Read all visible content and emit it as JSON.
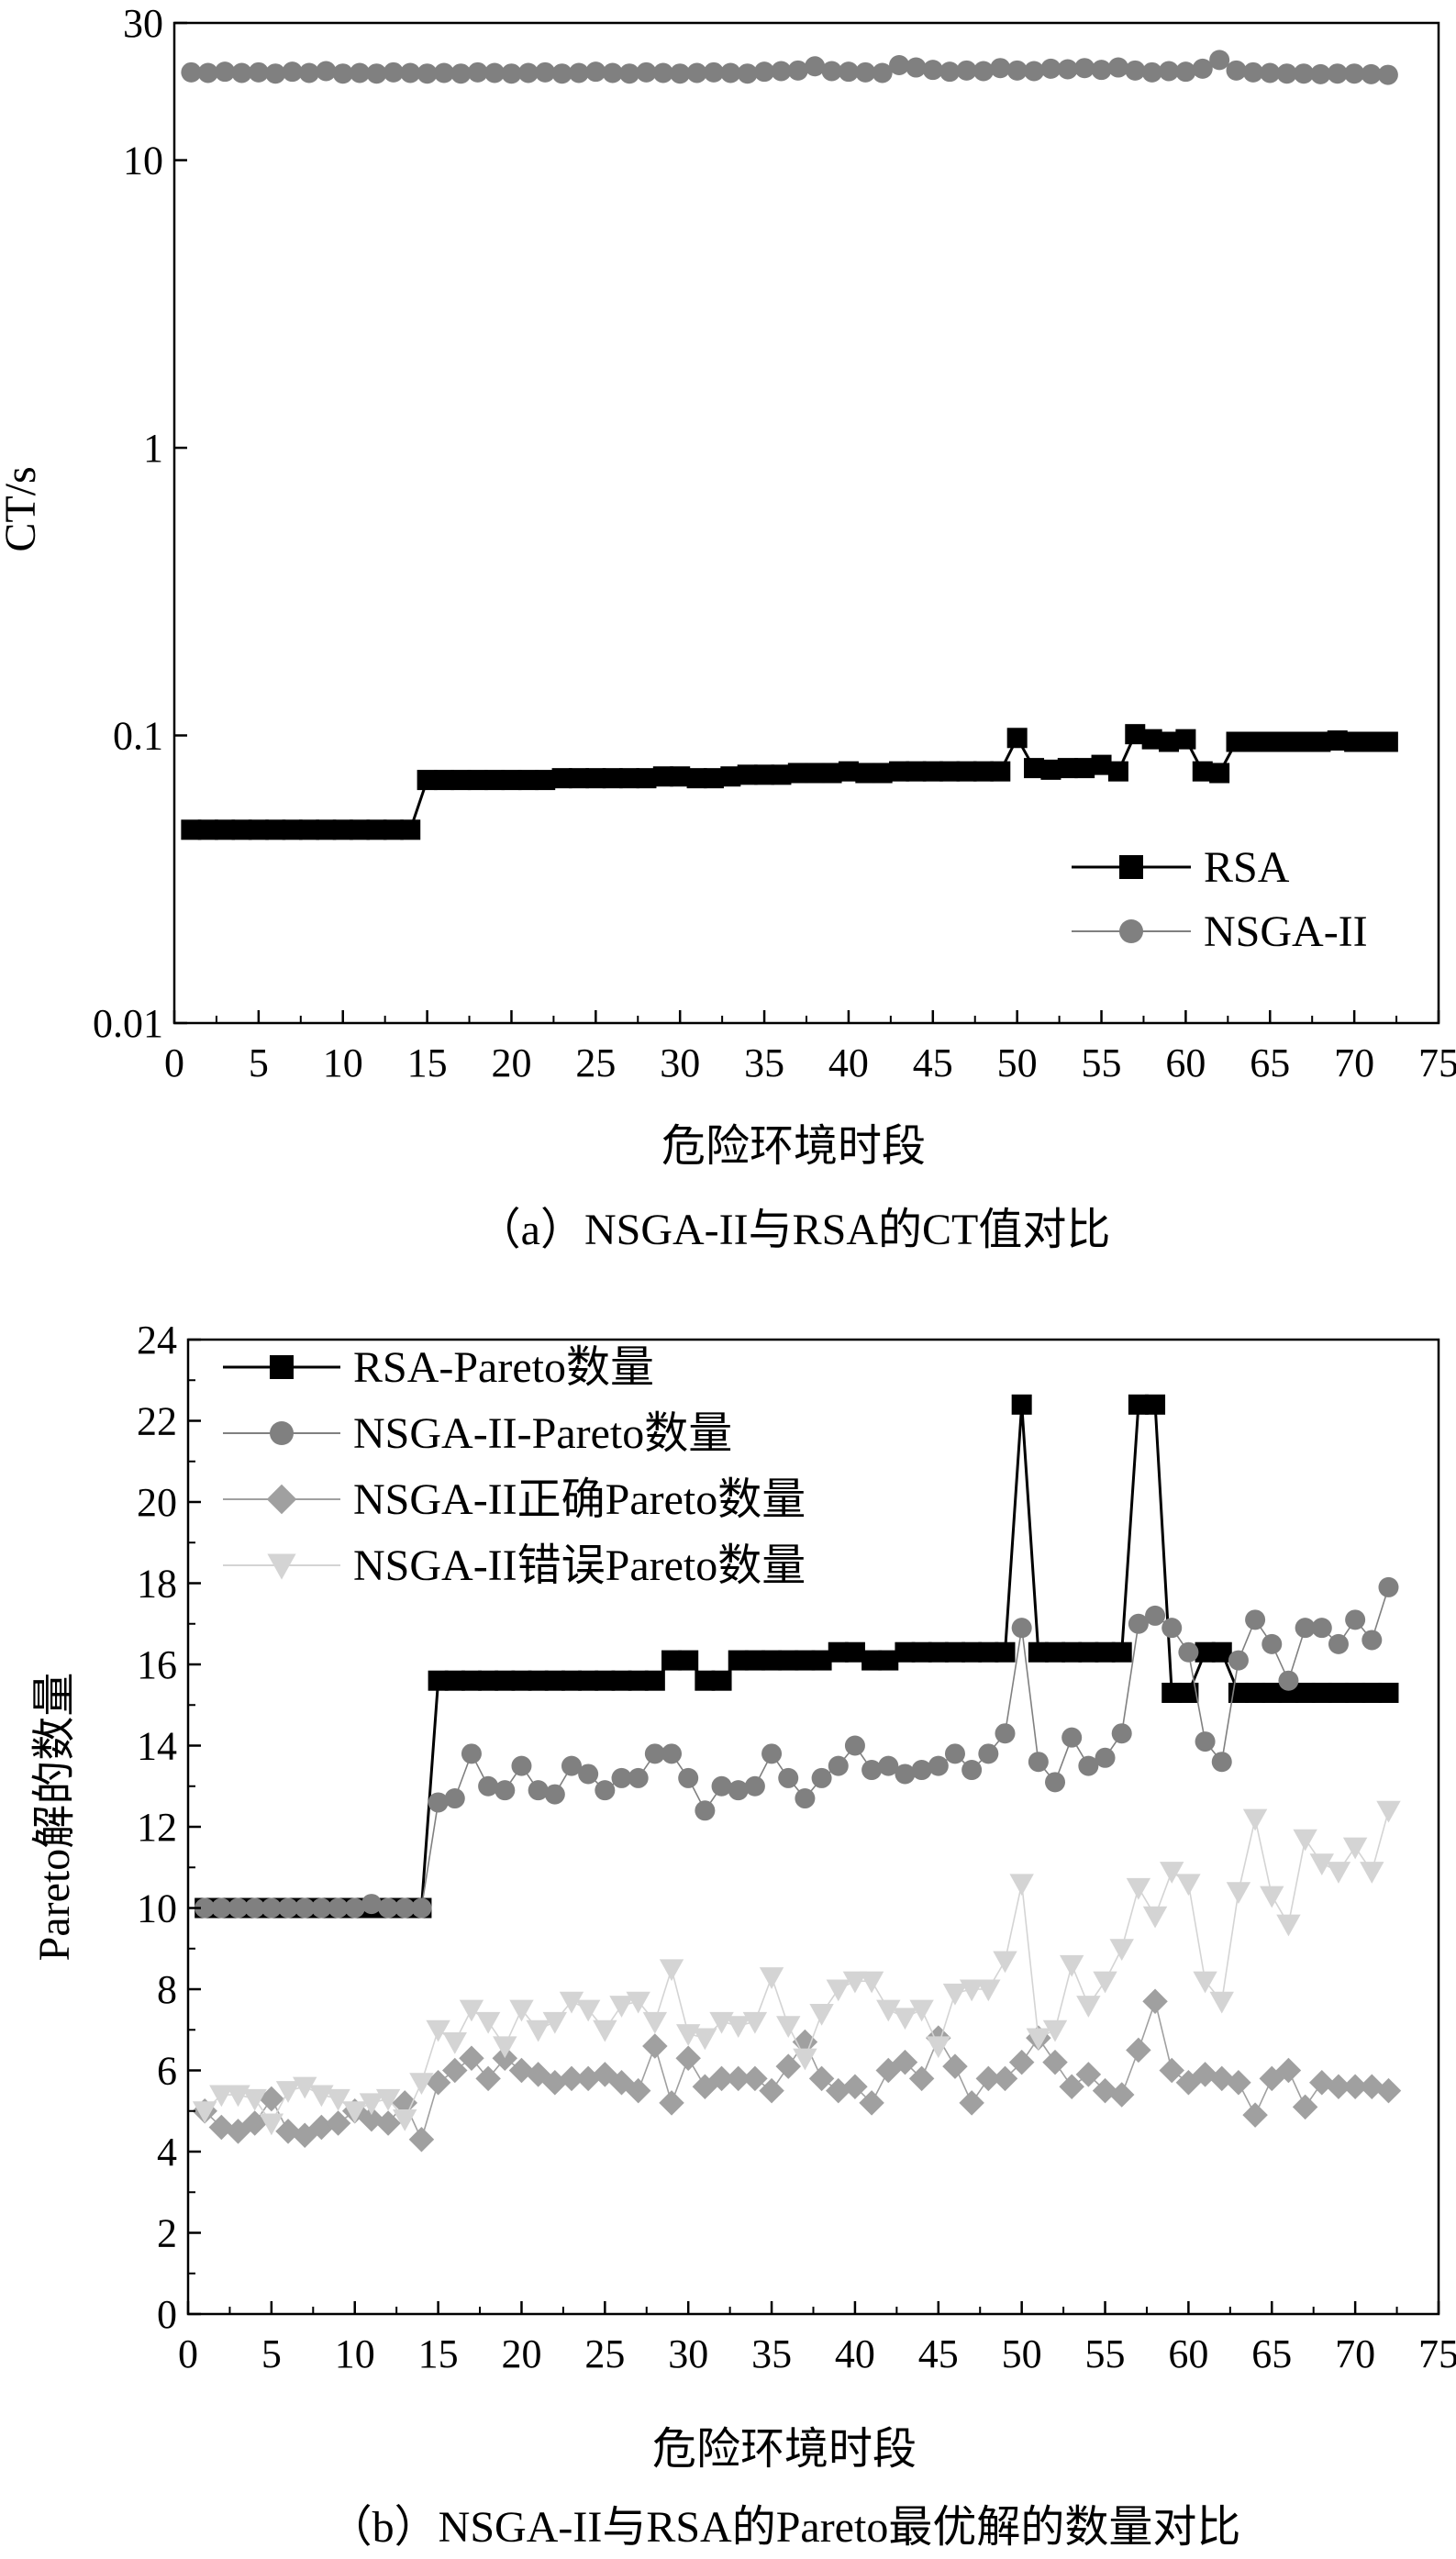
{
  "chart_data": [
    {
      "type": "scatter",
      "yscale": "log",
      "xlabel": "危险环境时段",
      "ylabel": "CT/s",
      "caption": "（a）NSGA-II与RSA的CT值对比",
      "xlim": [
        0,
        75
      ],
      "ylim": [
        0.01,
        30
      ],
      "x_ticks": [
        "0",
        "5",
        "10",
        "15",
        "20",
        "25",
        "30",
        "35",
        "40",
        "45",
        "50",
        "55",
        "60",
        "65",
        "70",
        "75"
      ],
      "y_ticks": [
        {
          "value": 0.01,
          "label": "0.01"
        },
        {
          "value": 0.1,
          "label": "0.1"
        },
        {
          "value": 1,
          "label": "1"
        },
        {
          "value": 10,
          "label": "10"
        },
        {
          "value": 30,
          "label": "30"
        }
      ],
      "legend": {
        "position": "bottom-right"
      },
      "series": [
        {
          "name": "RSA",
          "marker": "square",
          "color": "#000000",
          "values": [
            0.047,
            0.047,
            0.047,
            0.047,
            0.047,
            0.047,
            0.047,
            0.047,
            0.047,
            0.047,
            0.047,
            0.047,
            0.047,
            0.047,
            0.07,
            0.07,
            0.07,
            0.07,
            0.07,
            0.07,
            0.07,
            0.07,
            0.071,
            0.071,
            0.071,
            0.071,
            0.071,
            0.071,
            0.072,
            0.072,
            0.071,
            0.071,
            0.072,
            0.073,
            0.073,
            0.073,
            0.074,
            0.074,
            0.074,
            0.075,
            0.074,
            0.074,
            0.075,
            0.075,
            0.075,
            0.075,
            0.075,
            0.075,
            0.075,
            0.098,
            0.077,
            0.076,
            0.077,
            0.077,
            0.079,
            0.075,
            0.101,
            0.097,
            0.095,
            0.097,
            0.075,
            0.074,
            0.095,
            0.095,
            0.095,
            0.095,
            0.095,
            0.095,
            0.096,
            0.095,
            0.095,
            0.095
          ]
        },
        {
          "name": "NSGA-II",
          "marker": "circle",
          "color": "#808080",
          "values": [
            20.2,
            20.1,
            20.3,
            20.1,
            20.2,
            20.0,
            20.3,
            20.1,
            20.4,
            20.0,
            20.1,
            20.0,
            20.2,
            20.1,
            20.0,
            20.1,
            20.0,
            20.2,
            20.1,
            20.0,
            20.1,
            20.2,
            20.0,
            20.1,
            20.3,
            20.1,
            20.0,
            20.2,
            20.1,
            20.0,
            20.1,
            20.2,
            20.1,
            20.0,
            20.3,
            20.4,
            20.5,
            21.2,
            20.4,
            20.3,
            20.2,
            20.1,
            21.4,
            21.0,
            20.6,
            20.3,
            20.5,
            20.4,
            20.9,
            20.5,
            20.4,
            20.8,
            20.7,
            20.9,
            20.6,
            21.0,
            20.5,
            20.2,
            20.4,
            20.3,
            20.8,
            22.3,
            20.5,
            20.2,
            20.1,
            20.0,
            20.0,
            19.9,
            20.0,
            20.0,
            19.9,
            19.8
          ]
        }
      ]
    },
    {
      "type": "line",
      "xlabel": "危险环境时段",
      "ylabel": "Pareto解的数量",
      "caption": "（b）NSGA-II与RSA的Pareto最优解的数量对比",
      "xlim": [
        0,
        75
      ],
      "ylim": [
        0,
        24
      ],
      "x_ticks": [
        "0",
        "5",
        "10",
        "15",
        "20",
        "25",
        "30",
        "35",
        "40",
        "45",
        "50",
        "55",
        "60",
        "65",
        "70",
        "75"
      ],
      "y_ticks": [
        "0",
        "2",
        "4",
        "6",
        "8",
        "10",
        "12",
        "14",
        "16",
        "18",
        "20",
        "22",
        "24"
      ],
      "legend": {
        "position": "top-left"
      },
      "series": [
        {
          "name": "RSA-Pareto数量",
          "marker": "square",
          "color": "#000000",
          "values": [
            10,
            10,
            10,
            10,
            10,
            10,
            10,
            10,
            10,
            10,
            10,
            10,
            10,
            10,
            15.6,
            15.6,
            15.6,
            15.6,
            15.6,
            15.6,
            15.6,
            15.6,
            15.6,
            15.6,
            15.6,
            15.6,
            15.6,
            15.6,
            16.1,
            16.1,
            15.6,
            15.6,
            16.1,
            16.1,
            16.1,
            16.1,
            16.1,
            16.1,
            16.3,
            16.3,
            16.1,
            16.1,
            16.3,
            16.3,
            16.3,
            16.3,
            16.3,
            16.3,
            16.3,
            22.4,
            16.3,
            16.3,
            16.3,
            16.3,
            16.3,
            16.3,
            22.4,
            22.4,
            15.3,
            15.3,
            16.3,
            16.3,
            15.3,
            15.3,
            15.3,
            15.3,
            15.3,
            15.3,
            15.3,
            15.3,
            15.3,
            15.3
          ]
        },
        {
          "name": "NSGA-II-Pareto数量",
          "marker": "circle",
          "color": "#808080",
          "values": [
            10,
            10,
            10,
            10,
            10,
            10,
            10,
            10,
            10,
            10,
            10.1,
            10,
            10,
            10,
            12.6,
            12.7,
            13.8,
            13.0,
            12.9,
            13.5,
            12.9,
            12.8,
            13.5,
            13.3,
            12.9,
            13.2,
            13.2,
            13.8,
            13.8,
            13.2,
            12.4,
            13.0,
            12.9,
            13.0,
            13.8,
            13.2,
            12.7,
            13.2,
            13.5,
            14.0,
            13.4,
            13.5,
            13.3,
            13.4,
            13.5,
            13.8,
            13.4,
            13.8,
            14.3,
            16.9,
            13.6,
            13.1,
            14.2,
            13.5,
            13.7,
            14.3,
            17.0,
            17.2,
            16.9,
            16.3,
            14.1,
            13.6,
            16.1,
            17.1,
            16.5,
            15.6,
            16.9,
            16.9,
            16.5,
            17.1,
            16.6,
            17.9
          ]
        },
        {
          "name": "NSGA-II正确Pareto数量",
          "marker": "diamond",
          "color": "#a0a0a0",
          "values": [
            5.0,
            4.6,
            4.5,
            4.7,
            5.3,
            4.5,
            4.4,
            4.6,
            4.7,
            5.0,
            4.8,
            4.7,
            5.2,
            4.3,
            5.7,
            6.0,
            6.3,
            5.8,
            6.3,
            6.0,
            5.9,
            5.7,
            5.8,
            5.8,
            5.9,
            5.7,
            5.5,
            6.6,
            5.2,
            6.3,
            5.6,
            5.8,
            5.8,
            5.8,
            5.5,
            6.1,
            6.7,
            5.8,
            5.5,
            5.6,
            5.2,
            6.0,
            6.2,
            5.8,
            6.8,
            6.1,
            5.2,
            5.8,
            5.8,
            6.2,
            6.8,
            6.2,
            5.6,
            5.9,
            5.5,
            5.4,
            6.5,
            7.7,
            6.0,
            5.7,
            5.9,
            5.8,
            5.7,
            4.9,
            5.8,
            6.0,
            5.1,
            5.7,
            5.6,
            5.6,
            5.6,
            5.5
          ]
        },
        {
          "name": "NSGA-II错误Pareto数量",
          "marker": "triangle-down",
          "color": "#d4d4d4",
          "values": [
            5.0,
            5.4,
            5.4,
            5.3,
            4.7,
            5.5,
            5.6,
            5.4,
            5.3,
            5.0,
            5.2,
            5.3,
            4.8,
            5.7,
            7.0,
            6.7,
            7.5,
            7.2,
            6.6,
            7.5,
            7.0,
            7.2,
            7.7,
            7.5,
            7.0,
            7.6,
            7.7,
            7.2,
            8.5,
            6.9,
            6.8,
            7.2,
            7.1,
            7.2,
            8.3,
            7.1,
            6.3,
            7.4,
            8.0,
            8.2,
            8.2,
            7.5,
            7.3,
            7.5,
            6.6,
            7.9,
            8.0,
            8.0,
            8.7,
            10.6,
            6.8,
            7.0,
            8.6,
            7.6,
            8.2,
            9.0,
            10.5,
            9.8,
            10.9,
            10.6,
            8.2,
            7.7,
            10.4,
            12.2,
            10.3,
            9.6,
            11.7,
            11.1,
            10.9,
            11.5,
            10.9,
            12.4
          ]
        }
      ]
    }
  ]
}
